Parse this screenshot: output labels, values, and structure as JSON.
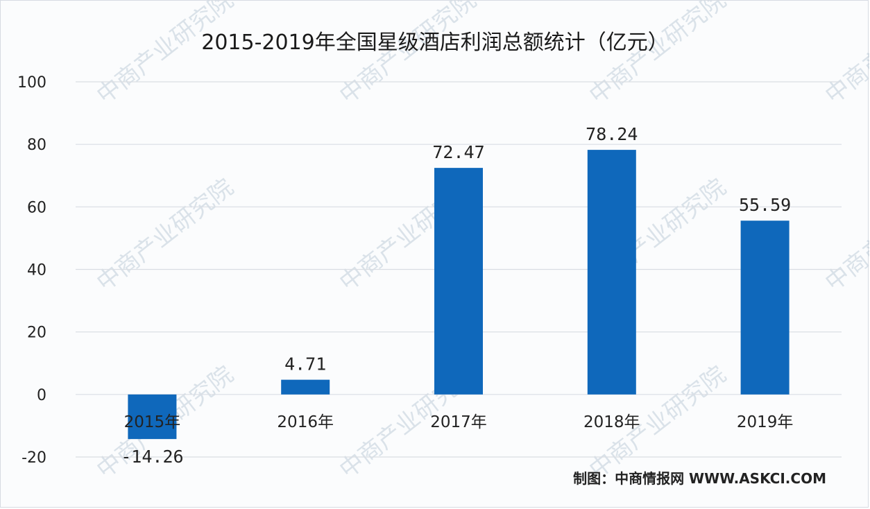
{
  "chart_data": {
    "type": "bar",
    "title": "2015-2019年全国星级酒店利润总额统计（亿元）",
    "categories": [
      "2015年",
      "2016年",
      "2017年",
      "2018年",
      "2019年"
    ],
    "values": [
      -14.26,
      4.71,
      72.47,
      78.24,
      55.59
    ],
    "data_labels": [
      "-14.26",
      "4.71",
      "72.47",
      "78.24",
      "55.59"
    ],
    "yticks": [
      "100",
      "80",
      "60",
      "40",
      "20",
      "0",
      "-20"
    ],
    "ylim": [
      -20,
      100
    ],
    "grid": true,
    "legend": "none",
    "bar_color": "#0f68bb",
    "gridline_color": "#d9dde3"
  },
  "source_label": "制图：中商情报网 WWW.ASKCI.COM",
  "watermark_text": "中商产业研究院"
}
